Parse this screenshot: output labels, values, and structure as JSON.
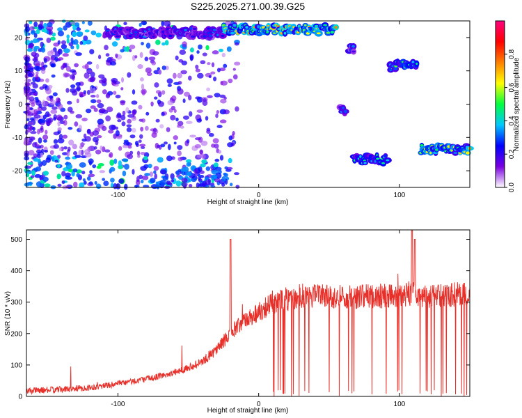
{
  "title": "S225.2025.271.00.39.G25",
  "chart_data": [
    {
      "type": "heatmap",
      "xlabel": "Height of straight line (km)",
      "ylabel": "Frequency (Hz)",
      "xlim": [
        -165,
        150
      ],
      "ylim": [
        -25,
        25
      ],
      "xticks": [
        -100,
        0,
        100
      ],
      "yticks": [
        -20,
        -10,
        0,
        10,
        20
      ],
      "colorbar": {
        "label": "Normalized spectral amplitude",
        "range": [
          0,
          1
        ],
        "ticks": [
          "0.0",
          "0.2",
          "0.4",
          "0.6",
          "0.8"
        ],
        "colors": [
          "#ffffff",
          "#7a00e0",
          "#0000ff",
          "#00c8ff",
          "#00ff40",
          "#ffff00",
          "#ff8000",
          "#ff0000",
          "#ff0080"
        ]
      },
      "bands": [
        {
          "x0": -110,
          "x1": -25,
          "y": 21.5,
          "amp": 0.35
        },
        {
          "x0": -25,
          "x1": 55,
          "y": 22.5,
          "amp": 0.75
        },
        {
          "x0": 58,
          "x1": 62,
          "y": -2.0,
          "amp": 0.35
        },
        {
          "x0": 64,
          "x1": 68,
          "y": 16.5,
          "amp": 0.35
        },
        {
          "x0": 67,
          "x1": 92,
          "y": -16.5,
          "amp": 0.5
        },
        {
          "x0": 93,
          "x1": 113,
          "y": 11.5,
          "amp": 0.6
        },
        {
          "x0": 115,
          "x1": 150,
          "y": -13.5,
          "amp": 0.7
        }
      ]
    },
    {
      "type": "line",
      "xlabel": "Height of straight line (km)",
      "ylabel": "SNR (10 * v/v)",
      "xlim": [
        -165,
        150
      ],
      "ylim": [
        0,
        530
      ],
      "xticks": [
        -100,
        0,
        100
      ],
      "yticks": [
        0,
        100,
        200,
        300,
        400,
        500
      ],
      "color": "#e8302a",
      "x": [
        -165,
        -140,
        -120,
        -100,
        -80,
        -60,
        -40,
        -30,
        -20,
        -10,
        0,
        10,
        20,
        30,
        40,
        60,
        80,
        100,
        110,
        120,
        140,
        150
      ],
      "y": [
        18,
        22,
        28,
        40,
        55,
        75,
        110,
        150,
        200,
        240,
        270,
        300,
        310,
        310,
        320,
        315,
        320,
        320,
        330,
        315,
        325,
        320
      ]
    }
  ]
}
